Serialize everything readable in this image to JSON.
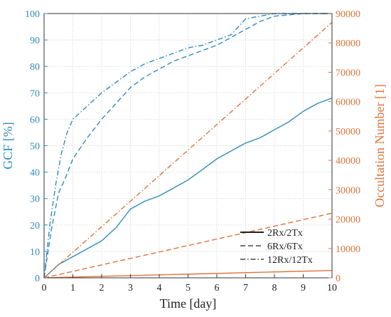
{
  "colors": {
    "left_axis": "#2f8cbf",
    "right_axis": "#e0733a",
    "legend_line": "#222222",
    "grid": "#d9d9d9",
    "frame": "#333333"
  },
  "chart_data": {
    "type": "line",
    "title": "",
    "xlabel": "Time [day]",
    "ylabel_left": "GCF [%]",
    "ylabel_right": "Occultation Number [1]",
    "xlim": [
      0,
      10
    ],
    "ylim_left": [
      0,
      100
    ],
    "ylim_right": [
      0,
      90000
    ],
    "x_ticks": [
      0,
      1,
      2,
      3,
      4,
      5,
      6,
      7,
      8,
      9,
      10
    ],
    "y_ticks_left": [
      0,
      10,
      20,
      30,
      40,
      50,
      60,
      70,
      80,
      90,
      100
    ],
    "y_ticks_right": [
      0,
      10000,
      20000,
      30000,
      40000,
      50000,
      60000,
      70000,
      80000,
      90000
    ],
    "grid": true,
    "legend_position": "bottom-right",
    "legend": [
      "2Rx/2Tx",
      "6Rx/6Tx",
      "12Rx/12Tx"
    ],
    "series": [
      {
        "axis": "left",
        "style": "solid",
        "x": [
          0,
          0.5,
          1,
          1.5,
          2,
          2.5,
          3,
          3.5,
          4,
          4.5,
          5,
          5.5,
          6,
          6.5,
          7,
          7.5,
          8,
          8.5,
          9,
          9.5,
          10
        ],
        "values": [
          0,
          5,
          8,
          11,
          14,
          19,
          26,
          29,
          31,
          34,
          37,
          41,
          45,
          48,
          51,
          53,
          56,
          59,
          63,
          66,
          68
        ]
      },
      {
        "axis": "left",
        "style": "dashed",
        "x": [
          0,
          0.25,
          0.5,
          0.75,
          1,
          1.5,
          2,
          2.5,
          3,
          3.5,
          4,
          4.5,
          5,
          5.5,
          6,
          6.5,
          7,
          7.5,
          8,
          9,
          10
        ],
        "values": [
          0,
          18,
          32,
          38,
          45,
          53,
          60,
          66,
          72,
          76,
          79,
          82,
          84,
          86,
          88,
          91,
          94,
          97,
          99,
          100,
          100
        ]
      },
      {
        "axis": "left",
        "style": "dashdot",
        "x": [
          0,
          0.2,
          0.4,
          0.6,
          0.8,
          1,
          1.5,
          2,
          2.5,
          3,
          3.5,
          4,
          4.5,
          5,
          5.5,
          6,
          6.5,
          7,
          8,
          9,
          10
        ],
        "values": [
          0,
          20,
          35,
          47,
          55,
          60,
          65,
          70,
          74,
          78,
          81,
          83,
          85,
          87,
          88,
          90,
          92,
          98,
          100,
          100,
          100
        ]
      },
      {
        "axis": "right",
        "style": "solid",
        "x": [
          0,
          10
        ],
        "values": [
          0,
          2500
        ]
      },
      {
        "axis": "right",
        "style": "dashed",
        "x": [
          0,
          10
        ],
        "values": [
          0,
          22000
        ]
      },
      {
        "axis": "right",
        "style": "dashdot",
        "x": [
          0,
          10
        ],
        "values": [
          0,
          87000
        ]
      }
    ]
  }
}
